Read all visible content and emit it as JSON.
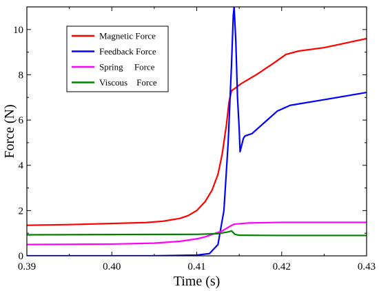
{
  "chart_data": {
    "type": "line",
    "xlabel": "Time (s)",
    "ylabel": "Force (N)",
    "xlim": [
      0.39,
      0.43
    ],
    "ylim": [
      0,
      11
    ],
    "x_ticks": [
      "0.39",
      "0.40",
      "0.41",
      "0.42",
      "0.43"
    ],
    "y_ticks": [
      "0",
      "2",
      "4",
      "6",
      "8",
      "10"
    ],
    "grid": false,
    "legend_position": "top-left",
    "series": [
      {
        "name": "Magnetic Force",
        "color": "#ff0000",
        "points": [
          [
            0.39,
            1.35
          ],
          [
            0.395,
            1.38
          ],
          [
            0.4,
            1.43
          ],
          [
            0.404,
            1.47
          ],
          [
            0.406,
            1.53
          ],
          [
            0.408,
            1.65
          ],
          [
            0.409,
            1.78
          ],
          [
            0.41,
            2.0
          ],
          [
            0.411,
            2.4
          ],
          [
            0.4118,
            2.9
          ],
          [
            0.4125,
            3.6
          ],
          [
            0.413,
            4.5
          ],
          [
            0.4135,
            5.8
          ],
          [
            0.4138,
            6.8
          ],
          [
            0.4141,
            7.3
          ],
          [
            0.4145,
            7.4
          ],
          [
            0.4152,
            7.6
          ],
          [
            0.417,
            8.0
          ],
          [
            0.419,
            8.5
          ],
          [
            0.4205,
            8.9
          ],
          [
            0.422,
            9.05
          ],
          [
            0.425,
            9.2
          ],
          [
            0.43,
            9.6
          ]
        ]
      },
      {
        "name": "Feedback Force",
        "color": "#0000ff",
        "points": [
          [
            0.39,
            0
          ],
          [
            0.405,
            0
          ],
          [
            0.41,
            0.03
          ],
          [
            0.4115,
            0.1
          ],
          [
            0.4125,
            0.5
          ],
          [
            0.4132,
            2.0
          ],
          [
            0.4137,
            5.0
          ],
          [
            0.4141,
            8.5
          ],
          [
            0.4143,
            10.6
          ],
          [
            0.4144,
            11.0
          ],
          [
            0.4146,
            9.5
          ],
          [
            0.4148,
            7.0
          ],
          [
            0.415,
            5.6
          ],
          [
            0.4151,
            4.6
          ],
          [
            0.4153,
            4.9
          ],
          [
            0.4155,
            5.2
          ],
          [
            0.4157,
            5.3
          ],
          [
            0.4165,
            5.4
          ],
          [
            0.418,
            5.9
          ],
          [
            0.4195,
            6.4
          ],
          [
            0.421,
            6.65
          ],
          [
            0.425,
            6.9
          ],
          [
            0.43,
            7.22
          ]
        ]
      },
      {
        "name": "Spring     Force",
        "color": "#ff00ff",
        "points": [
          [
            0.39,
            0.5
          ],
          [
            0.4,
            0.52
          ],
          [
            0.405,
            0.56
          ],
          [
            0.408,
            0.64
          ],
          [
            0.41,
            0.75
          ],
          [
            0.411,
            0.84
          ],
          [
            0.412,
            0.97
          ],
          [
            0.413,
            1.1
          ],
          [
            0.4138,
            1.28
          ],
          [
            0.4144,
            1.4
          ],
          [
            0.416,
            1.45
          ],
          [
            0.42,
            1.48
          ],
          [
            0.43,
            1.48
          ]
        ]
      },
      {
        "name": "Viscous    Force",
        "color": "#008000",
        "points": [
          [
            0.39,
            0.93
          ],
          [
            0.41,
            0.95
          ],
          [
            0.4125,
            0.98
          ],
          [
            0.4136,
            1.05
          ],
          [
            0.4141,
            1.1
          ],
          [
            0.4145,
            0.95
          ],
          [
            0.415,
            0.91
          ],
          [
            0.42,
            0.9
          ],
          [
            0.43,
            0.9
          ]
        ]
      }
    ]
  }
}
